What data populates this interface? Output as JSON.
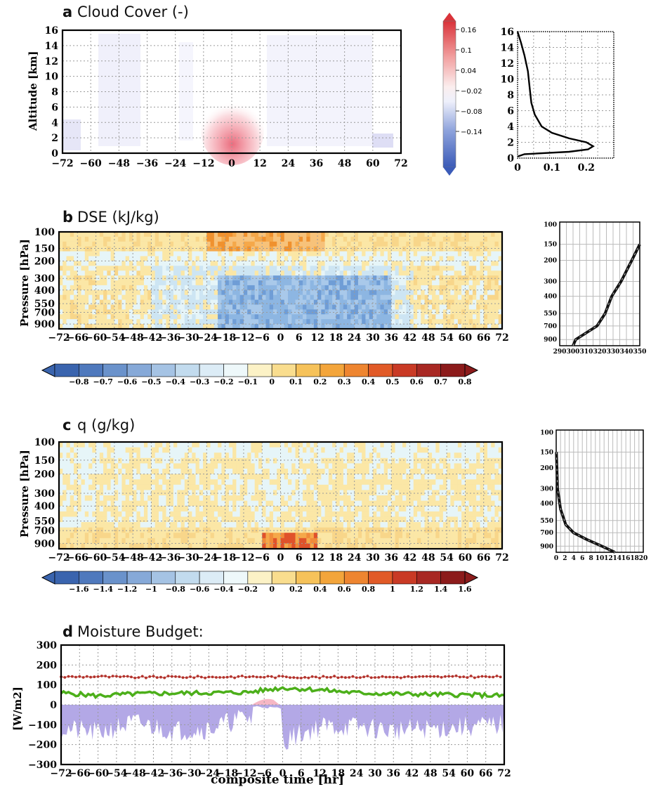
{
  "panels": {
    "a": {
      "letter": "a",
      "title": "Cloud Cover (-)"
    },
    "b": {
      "letter": "b",
      "title": "DSE (kJ/kg)"
    },
    "c": {
      "letter": "c",
      "title": "q (g/kg)"
    },
    "d": {
      "letter": "d",
      "title": "Moisture Budget:"
    }
  },
  "labels": {
    "altitude": "Altitude [km]",
    "pressure": "Pressure [hPa]",
    "flux": "[W/m2]",
    "composite_time": "composite time [hr]"
  },
  "colors": {
    "positive": "#d73027",
    "negative": "#4575b4",
    "dse_pos": "#f0a640",
    "dse_neg": "#7fa8d8",
    "q_pos": "#f6d98a",
    "budget_red": "#b3332c",
    "budget_green": "#4caf1a",
    "budget_purple": "#b3a8e6",
    "budget_pink": "#f6b7c4"
  },
  "chart_data": [
    {
      "id": "a_main",
      "type": "heatmap",
      "variable": "Cloud Cover (-)",
      "x_ticks": [
        -72,
        -60,
        -48,
        -36,
        -24,
        -12,
        0,
        12,
        24,
        36,
        48,
        60,
        72
      ],
      "y_ticks": [
        0,
        2,
        4,
        6,
        8,
        10,
        12,
        14,
        16
      ],
      "xlim": [
        -72,
        72
      ],
      "ylim": [
        0,
        16
      ],
      "ylabel": "Altitude [km]",
      "colorbar_labels": [
        "0.16",
        "0.1",
        "0.04",
        "−0.02",
        "−0.08",
        "−0.14"
      ],
      "features": [
        {
          "x": 0,
          "y": 2,
          "value": 0.1,
          "note": "positive anomaly at low levels"
        }
      ]
    },
    {
      "id": "a_profile",
      "type": "line",
      "x_ticks": [
        "0",
        "0.1",
        "0.2"
      ],
      "y_ticks": [
        0,
        2,
        4,
        6,
        8,
        10,
        12,
        14,
        16
      ],
      "xlim": [
        0,
        0.28
      ],
      "ylim": [
        0,
        16
      ],
      "x": [
        0.0,
        0.02,
        0.15,
        0.205,
        0.22,
        0.2,
        0.15,
        0.1,
        0.07,
        0.05,
        0.04,
        0.035,
        0.03,
        0.02,
        0.01,
        0.0
      ],
      "y": [
        0.2,
        0.5,
        0.8,
        1.1,
        1.5,
        2.0,
        2.5,
        3.2,
        4.0,
        5.5,
        7.0,
        9.0,
        11.0,
        13.0,
        14.6,
        16.0
      ]
    },
    {
      "id": "b_main",
      "type": "heatmap",
      "variable": "DSE (kJ/kg)",
      "x_ticks": [
        "−72",
        "−66",
        "−60",
        "−54",
        "−48",
        "−42",
        "−36",
        "−30",
        "−24",
        "−18",
        "−12",
        "−6",
        "0",
        "6",
        "12",
        "18",
        "24",
        "30",
        "36",
        "42",
        "48",
        "54",
        "60",
        "66",
        "72"
      ],
      "y_ticks": [
        "100",
        "150",
        "200",
        "300",
        "400",
        "550",
        "700",
        "900"
      ],
      "ylabel": "Pressure [hPa]",
      "colorbar_labels": [
        "−0.8",
        "−0.7",
        "−0.6",
        "−0.5",
        "−0.4",
        "−0.3",
        "−0.2",
        "−0.1",
        "0",
        "0.1",
        "0.2",
        "0.3",
        "0.4",
        "0.5",
        "0.6",
        "0.7",
        "0.8"
      ]
    },
    {
      "id": "b_profile",
      "type": "line",
      "x_ticks": [
        "290",
        "300",
        "310",
        "320",
        "330",
        "340",
        "350"
      ],
      "y_ticks": [
        "100",
        "150",
        "200",
        "300",
        "400",
        "550",
        "700",
        "900"
      ],
      "xlim": [
        290,
        350
      ],
      "x": [
        300,
        302,
        310,
        318,
        324,
        329,
        336,
        344,
        350
      ],
      "y": [
        1000,
        900,
        800,
        700,
        550,
        400,
        300,
        200,
        150
      ]
    },
    {
      "id": "c_main",
      "type": "heatmap",
      "variable": "q (g/kg)",
      "x_ticks": [
        "−72",
        "−66",
        "−60",
        "−54",
        "−48",
        "−42",
        "−36",
        "−30",
        "−24",
        "−18",
        "−12",
        "−6",
        "0",
        "6",
        "12",
        "18",
        "24",
        "30",
        "36",
        "42",
        "48",
        "54",
        "60",
        "66",
        "72"
      ],
      "y_ticks": [
        "100",
        "150",
        "200",
        "300",
        "400",
        "550",
        "700",
        "900"
      ],
      "ylabel": "Pressure [hPa]",
      "colorbar_labels": [
        "−1.6",
        "−1.4",
        "−1.2",
        "−1",
        "−0.8",
        "−0.6",
        "−0.4",
        "−0.2",
        "0",
        "0.2",
        "0.4",
        "0.6",
        "0.8",
        "1",
        "1.2",
        "1.4",
        "1.6"
      ]
    },
    {
      "id": "c_profile",
      "type": "line",
      "x_ticks": [
        "0",
        "2",
        "4",
        "6",
        "8",
        "10",
        "12",
        "14",
        "16",
        "18",
        "20"
      ],
      "y_ticks": [
        "100",
        "150",
        "200",
        "300",
        "400",
        "550",
        "700",
        "900"
      ],
      "xlim": [
        0,
        20
      ],
      "x": [
        0.05,
        0.3,
        1.0,
        2.2,
        4.0,
        7.0,
        10.5,
        13.5
      ],
      "y": [
        150,
        300,
        450,
        600,
        700,
        800,
        900,
        1000
      ]
    },
    {
      "id": "d_budget",
      "type": "line",
      "x_ticks": [
        "−72",
        "−66",
        "−60",
        "−54",
        "−48",
        "−42",
        "−36",
        "−30",
        "−24",
        "−18",
        "−12",
        "−6",
        "0",
        "6",
        "12",
        "18",
        "24",
        "30",
        "36",
        "42",
        "48",
        "54",
        "60",
        "66",
        "72"
      ],
      "y_ticks": [
        "300",
        "200",
        "100",
        "0",
        "−100",
        "−200",
        "−300"
      ],
      "ylim": [
        -300,
        300
      ],
      "ylabel": "[W/m2]",
      "xlabel": "composite time [hr]",
      "x": [
        -72,
        -60,
        -48,
        -36,
        -24,
        -12,
        0,
        12,
        24,
        36,
        48,
        60,
        72
      ],
      "series": [
        {
          "values": [
            140,
            142,
            138,
            140,
            139,
            141,
            140,
            138,
            141,
            139,
            140,
            141,
            140
          ]
        },
        {
          "values": [
            60,
            45,
            55,
            58,
            60,
            62,
            85,
            75,
            60,
            55,
            52,
            50,
            45
          ]
        },
        {
          "values": [
            -120,
            -140,
            -90,
            -130,
            -120,
            -60,
            -180,
            -110,
            -110,
            -130,
            -120,
            -110,
            -100
          ]
        }
      ]
    }
  ]
}
